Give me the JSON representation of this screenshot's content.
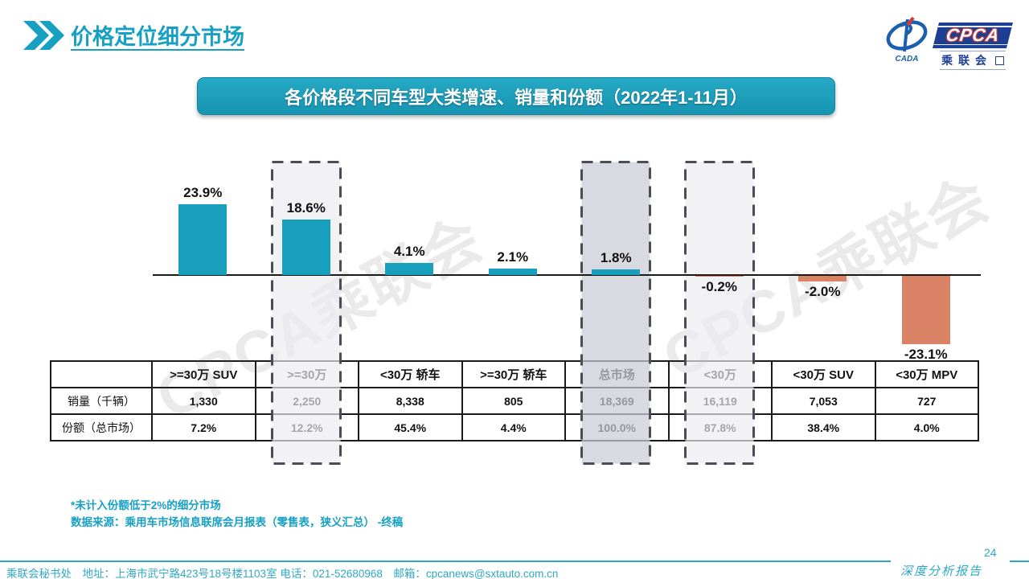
{
  "page": {
    "title": "价格定位细分市场",
    "page_number": "24",
    "report_label": "深度分析报告",
    "footer": "乘联会秘书处　地址：上海市武宁路423号18号楼1103室 电话：021-52680968　邮箱：cpcanews@sxtauto.com.cn"
  },
  "logo": {
    "cada": "CADA",
    "cpca": "CPCA",
    "cpca_cn": "乘联会"
  },
  "banner": {
    "text": "各价格段不同车型大类增速、销量和份额（2022年1-11月）"
  },
  "watermark": "CPCA乘联会",
  "notes": [
    "*未计入份额低于2%的细分市场",
    "数据来源：乘用车市场信息联席会月报表（零售表，狭义汇总） -终稿"
  ],
  "colors": {
    "accent": "#17A0C2",
    "bar_positive": "#189FBE",
    "bar_negative": "#D98265",
    "dash": "#4C4C58",
    "highlight_light": "#ECECF0",
    "highlight_dark": "#CBCBD5",
    "footer_teal": "#2FA8C6",
    "logo_blue": "#1C3F94",
    "logo_red": "#D03B33"
  },
  "chart_data": {
    "type": "bar",
    "title": "各价格段不同车型大类增速、销量和份额（2022年1-11月）",
    "categories": [
      ">=30万 SUV",
      ">=30万",
      "<30万 轿车",
      ">=30万 轿车",
      "总市场",
      "<30万",
      "<30万 SUV",
      "<30万 MPV"
    ],
    "series": [
      {
        "name": "增速",
        "unit": "%",
        "values": [
          23.9,
          18.6,
          4.1,
          2.1,
          1.8,
          -0.2,
          -2.0,
          -23.1
        ]
      },
      {
        "name": "销量（千辆）",
        "values": [
          1330,
          2250,
          8338,
          805,
          18369,
          16119,
          7053,
          727
        ]
      },
      {
        "name": "份额（总市场）",
        "unit": "%",
        "values": [
          7.2,
          12.2,
          45.4,
          4.4,
          100.0,
          87.8,
          38.4,
          4.0
        ]
      }
    ],
    "value_labels": [
      "23.9%",
      "18.6%",
      "4.1%",
      "2.1%",
      "1.8%",
      "-0.2%",
      "-2.0%",
      "-23.1%"
    ],
    "highlights": [
      {
        "category": ">=30万",
        "shade": "light"
      },
      {
        "category": "总市场",
        "shade": "dark"
      },
      {
        "category": "<30万",
        "shade": "light"
      }
    ],
    "xlabel": "",
    "ylabel": "",
    "ylim": [
      -25,
      26
    ],
    "grid": false,
    "legend": "none",
    "baseline": 0
  },
  "table": {
    "corner": "",
    "columns": [
      ">=30万 SUV",
      ">=30万",
      "<30万 轿车",
      ">=30万 轿车",
      "总市场",
      "<30万",
      "<30万 SUV",
      "<30万 MPV"
    ],
    "row_headers": [
      "销量（千辆）",
      "份额（总市场）"
    ],
    "rows": [
      [
        "1,330",
        "2,250",
        "8,338",
        "805",
        "18,369",
        "16,119",
        "7,053",
        "727"
      ],
      [
        "7.2%",
        "12.2%",
        "45.4%",
        "4.4%",
        "100.0%",
        "87.8%",
        "38.4%",
        "4.0%"
      ]
    ]
  }
}
